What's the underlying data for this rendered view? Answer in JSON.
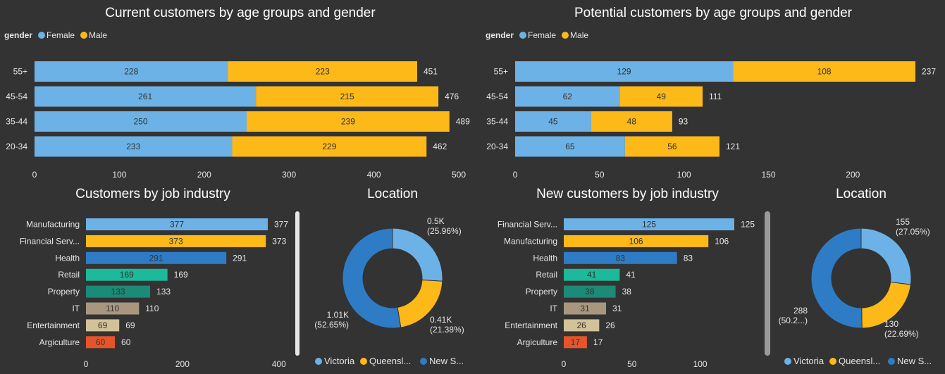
{
  "colors": {
    "female": "#6cb2e6",
    "male": "#fdb918",
    "victoria": "#6cb2e6",
    "queensland": "#fdb918",
    "nsw": "#2e7cc5",
    "background": "#333333"
  },
  "chart_data": [
    {
      "id": "current-age",
      "type": "bar",
      "orientation": "horizontal",
      "stacked": true,
      "title": "Current customers by age groups and gender",
      "legend_title": "gender",
      "categories": [
        "55+",
        "45-54",
        "35-44",
        "20-34"
      ],
      "series": [
        {
          "name": "Female",
          "values": [
            228,
            261,
            250,
            233
          ]
        },
        {
          "name": "Male",
          "values": [
            223,
            215,
            239,
            229
          ]
        }
      ],
      "totals": [
        451,
        476,
        489,
        462
      ],
      "xlim": [
        0,
        500
      ],
      "xticks": [
        0,
        100,
        200,
        300,
        400,
        500
      ]
    },
    {
      "id": "potential-age",
      "type": "bar",
      "orientation": "horizontal",
      "stacked": true,
      "title": "Potential customers by age groups and gender",
      "legend_title": "gender",
      "categories": [
        "55+",
        "45-54",
        "35-44",
        "20-34"
      ],
      "series": [
        {
          "name": "Female",
          "values": [
            129,
            62,
            45,
            65
          ]
        },
        {
          "name": "Male",
          "values": [
            108,
            49,
            48,
            56
          ]
        }
      ],
      "totals": [
        237,
        111,
        93,
        121
      ],
      "xlim": [
        0,
        237
      ],
      "xticks": [
        0,
        50,
        100,
        150,
        200
      ]
    },
    {
      "id": "job-industry",
      "type": "bar",
      "orientation": "horizontal",
      "title": "Customers by job industry",
      "categories": [
        "Manufacturing",
        "Financial Serv...",
        "Health",
        "Retail",
        "Property",
        "IT",
        "Entertainment",
        "Argiculture"
      ],
      "values": [
        377,
        373,
        291,
        169,
        133,
        110,
        69,
        60
      ],
      "bar_colors": [
        "#6cb2e6",
        "#fdb918",
        "#2e7cc5",
        "#1cb99a",
        "#1b8a77",
        "#a8967f",
        "#d2c298",
        "#e8542a"
      ],
      "xlim": [
        0,
        377
      ],
      "xticks": [
        0,
        200,
        400
      ]
    },
    {
      "id": "location-current",
      "type": "pie",
      "donut": true,
      "title": "Location",
      "labels": [
        "Victoria",
        "Queensl...",
        "New S..."
      ],
      "label_texts": [
        "0.5K",
        "0.41K",
        "1.01K"
      ],
      "percent_texts": [
        "(25.96%)",
        "(21.38%)",
        "(52.65%)"
      ],
      "values": [
        25.96,
        21.38,
        52.65
      ]
    },
    {
      "id": "new-job-industry",
      "type": "bar",
      "orientation": "horizontal",
      "title": "New customers by job industry",
      "categories": [
        "Financial Serv...",
        "Manufacturing",
        "Health",
        "Retail",
        "Property",
        "IT",
        "Entertainment",
        "Argiculture"
      ],
      "values": [
        125,
        106,
        83,
        41,
        38,
        31,
        26,
        17
      ],
      "bar_colors": [
        "#6cb2e6",
        "#fdb918",
        "#2e7cc5",
        "#1cb99a",
        "#1b8a77",
        "#a8967f",
        "#d2c298",
        "#e8542a"
      ],
      "xlim": [
        0,
        125
      ],
      "xticks": [
        0,
        50,
        100
      ]
    },
    {
      "id": "location-new",
      "type": "pie",
      "donut": true,
      "title": "Location",
      "labels": [
        "Victoria",
        "Queensl...",
        "New S..."
      ],
      "label_texts": [
        "155",
        "130",
        "288"
      ],
      "percent_texts": [
        "(27.05%)",
        "(22.69%)",
        "(50.2...)"
      ],
      "values": [
        155,
        130,
        288
      ]
    }
  ]
}
